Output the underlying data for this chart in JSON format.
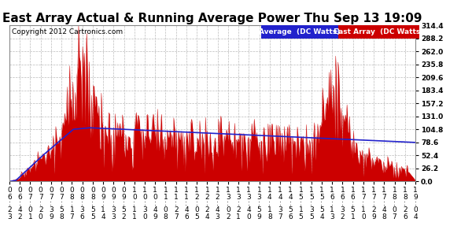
{
  "title": "East Array Actual & Running Average Power Thu Sep 13 19:09",
  "copyright": "Copyright 2012 Cartronics.com",
  "legend_avg": "Average  (DC Watts)",
  "legend_east": "East Array  (DC Watts)",
  "ylabel_values": [
    0.0,
    26.2,
    52.4,
    78.6,
    104.8,
    131.0,
    157.2,
    183.4,
    209.6,
    235.8,
    262.0,
    288.2,
    314.4
  ],
  "ymax": 314.4,
  "ymin": 0.0,
  "bg_color": "#ffffff",
  "plot_bg_color": "#ffffff",
  "grid_color": "#bbbbbb",
  "east_array_color": "#cc0000",
  "avg_color": "#2222cc",
  "title_fontsize": 11,
  "tick_fontsize": 6.5,
  "x_tick_labels": [
    "06:23",
    "06:42",
    "07:01",
    "07:20",
    "07:39",
    "07:58",
    "08:17",
    "08:36",
    "08:55",
    "09:14",
    "09:33",
    "09:52",
    "10:11",
    "10:30",
    "10:49",
    "11:08",
    "11:27",
    "11:46",
    "12:05",
    "12:24",
    "12:43",
    "13:02",
    "13:21",
    "13:40",
    "13:59",
    "14:18",
    "14:37",
    "14:56",
    "15:15",
    "15:35",
    "15:54",
    "16:13",
    "16:32",
    "16:51",
    "17:10",
    "17:29",
    "17:48",
    "18:07",
    "18:26",
    "19:04"
  ]
}
